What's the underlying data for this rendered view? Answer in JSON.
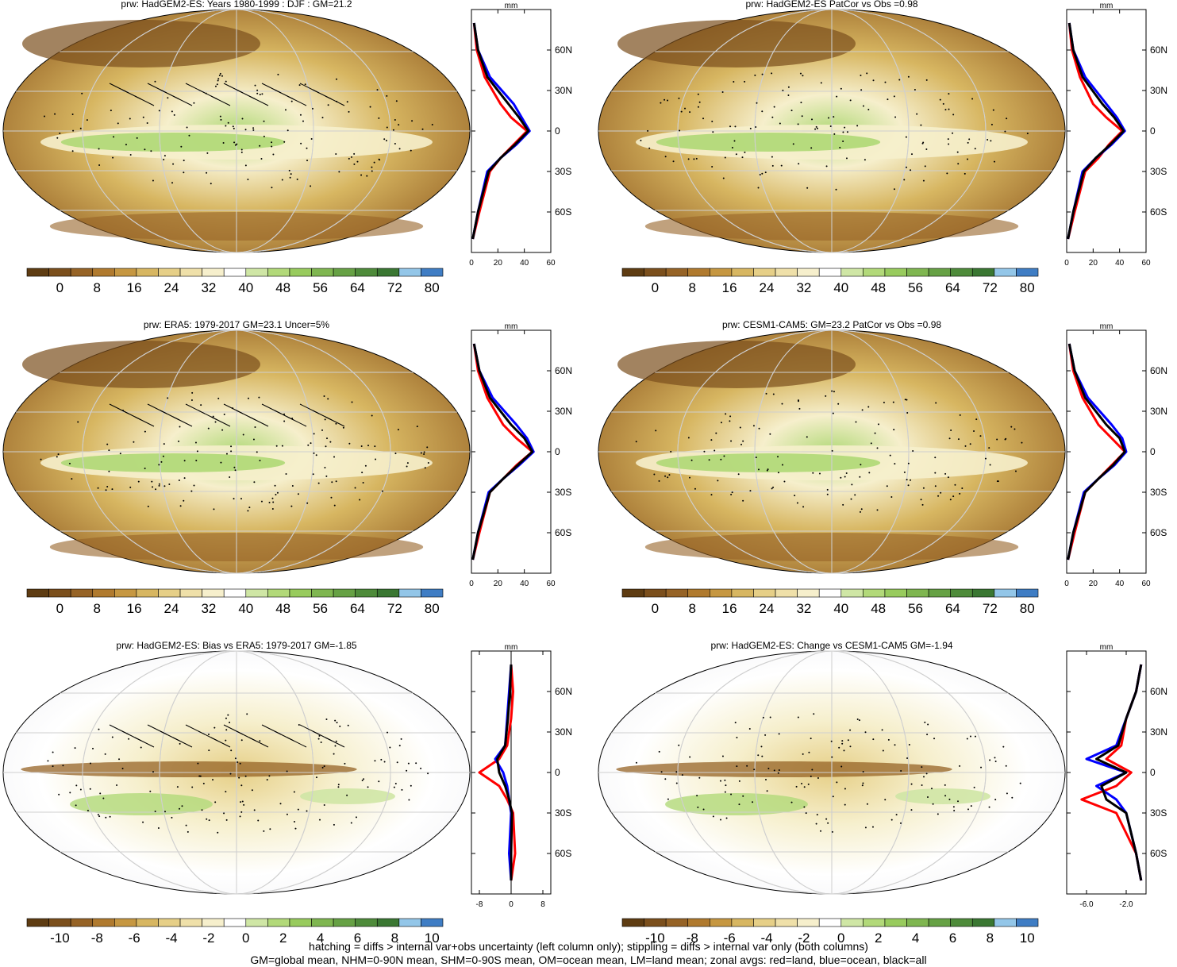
{
  "panels": [
    {
      "title": "prw: HadGEM2-ES: Years 1980-1999 : DJF : GM=21.2",
      "kind": "clim"
    },
    {
      "title": "prw: HadGEM2-ES PatCor vs Obs =0.98",
      "kind": "clim"
    },
    {
      "title": "prw: ERA5: 1979-2017 GM=23.1 Uncer=5%",
      "kind": "clim"
    },
    {
      "title": "prw: CESM1-CAM5: GM=23.2 PatCor vs Obs =0.98",
      "kind": "clim"
    },
    {
      "title": "prw: HadGEM2-ES: Bias vs ERA5: 1979-2017 GM=-1.85",
      "kind": "diff"
    },
    {
      "title": "prw: HadGEM2-ES: Change vs CESM1-CAM5 GM=-1.94",
      "kind": "diff"
    }
  ],
  "colorbars": {
    "clim": {
      "labels": [
        "0",
        "8",
        "16",
        "24",
        "32",
        "40",
        "48",
        "56",
        "64",
        "72",
        "80"
      ],
      "colors": [
        "#5e3c12",
        "#7b4f1c",
        "#966326",
        "#b07a2e",
        "#c69741",
        "#d7b661",
        "#e6cf87",
        "#efe0a9",
        "#f6efcc",
        "#ffffff",
        "#cfe6a5",
        "#b2d979",
        "#98cb5d",
        "#7fb650",
        "#66a144",
        "#4e8b3a",
        "#3a7732",
        "#93c6e8",
        "#3f7dc4"
      ]
    },
    "diff": {
      "labels": [
        "-10",
        "-8",
        "-6",
        "-4",
        "-2",
        "0",
        "2",
        "4",
        "6",
        "8",
        "10"
      ],
      "colors": [
        "#5e3c12",
        "#7b4f1c",
        "#966326",
        "#b07a2e",
        "#c69741",
        "#d7b661",
        "#e6cf87",
        "#efe0a9",
        "#f6efcc",
        "#ffffff",
        "#cfe6a5",
        "#b2d979",
        "#98cb5d",
        "#7fb650",
        "#66a144",
        "#4e8b3a",
        "#3a7732",
        "#93c6e8",
        "#3f7dc4"
      ]
    }
  },
  "lat_labels": [
    "60N",
    "30N",
    "0",
    "30S",
    "60S"
  ],
  "zonal_unit": "mm",
  "zonal_xticks": {
    "clim": [
      "0",
      "20",
      "40",
      "60"
    ],
    "bias": [
      "-8",
      "0",
      "8"
    ],
    "change": [
      "-6.0",
      "-2.0"
    ]
  },
  "chart_data": [
    {
      "type": "line",
      "title": "prw: HadGEM2-ES: Years 1980-1999 : DJF : GM=21.2",
      "xlim": [
        0,
        60
      ],
      "ylim": [
        -90,
        90
      ],
      "series": [
        {
          "color": "red",
          "x": [
            2,
            4,
            10,
            22,
            30,
            42,
            32,
            22,
            14,
            6,
            1
          ],
          "y": [
            80,
            60,
            40,
            20,
            10,
            0,
            -10,
            -20,
            -30,
            -60,
            -80
          ]
        },
        {
          "color": "blue",
          "x": [
            2,
            5,
            14,
            32,
            38,
            44,
            34,
            22,
            12,
            5,
            1
          ],
          "y": [
            80,
            60,
            40,
            20,
            10,
            0,
            -10,
            -20,
            -30,
            -60,
            -80
          ]
        },
        {
          "color": "black",
          "x": [
            2,
            5,
            12,
            28,
            36,
            43,
            33,
            22,
            13,
            5,
            1
          ],
          "y": [
            80,
            60,
            40,
            20,
            10,
            0,
            -10,
            -20,
            -30,
            -60,
            -80
          ]
        }
      ]
    },
    {
      "type": "line",
      "title": "prw: HadGEM2-ES PatCor vs Obs =0.98",
      "xlim": [
        0,
        60
      ],
      "ylim": [
        -90,
        90
      ],
      "series": [
        {
          "color": "red",
          "x": [
            2,
            4,
            10,
            20,
            30,
            42,
            32,
            24,
            14,
            6,
            1
          ],
          "y": [
            80,
            60,
            40,
            20,
            10,
            0,
            -10,
            -20,
            -30,
            -60,
            -80
          ]
        },
        {
          "color": "blue",
          "x": [
            2,
            5,
            14,
            30,
            38,
            44,
            34,
            22,
            12,
            5,
            1
          ],
          "y": [
            80,
            60,
            40,
            20,
            10,
            0,
            -10,
            -20,
            -30,
            -60,
            -80
          ]
        },
        {
          "color": "black",
          "x": [
            2,
            5,
            12,
            27,
            36,
            43,
            33,
            22,
            13,
            5,
            1
          ],
          "y": [
            80,
            60,
            40,
            20,
            10,
            0,
            -10,
            -20,
            -30,
            -60,
            -80
          ]
        }
      ]
    },
    {
      "type": "line",
      "title": "prw: ERA5: 1979-2017 GM=23.1 Uncer=5%",
      "xlim": [
        0,
        60
      ],
      "ylim": [
        -90,
        90
      ],
      "series": [
        {
          "color": "red",
          "x": [
            2,
            5,
            12,
            24,
            34,
            46,
            34,
            24,
            14,
            6,
            1
          ],
          "y": [
            80,
            60,
            40,
            20,
            10,
            0,
            -10,
            -20,
            -30,
            -60,
            -80
          ]
        },
        {
          "color": "blue",
          "x": [
            2,
            6,
            16,
            34,
            42,
            47,
            36,
            24,
            13,
            5,
            1
          ],
          "y": [
            80,
            60,
            40,
            20,
            10,
            0,
            -10,
            -20,
            -30,
            -60,
            -80
          ]
        },
        {
          "color": "black",
          "x": [
            2,
            6,
            14,
            30,
            40,
            46,
            35,
            24,
            14,
            5,
            1
          ],
          "y": [
            80,
            60,
            40,
            20,
            10,
            0,
            -10,
            -20,
            -30,
            -60,
            -80
          ]
        }
      ]
    },
    {
      "type": "line",
      "title": "prw: CESM1-CAM5: GM=23.2 PatCor vs Obs =0.98",
      "xlim": [
        0,
        60
      ],
      "ylim": [
        -90,
        90
      ],
      "series": [
        {
          "color": "red",
          "x": [
            2,
            5,
            12,
            24,
            34,
            44,
            34,
            24,
            14,
            6,
            1
          ],
          "y": [
            80,
            60,
            40,
            20,
            10,
            0,
            -10,
            -20,
            -30,
            -60,
            -80
          ]
        },
        {
          "color": "blue",
          "x": [
            2,
            6,
            16,
            34,
            42,
            45,
            36,
            24,
            13,
            5,
            1
          ],
          "y": [
            80,
            60,
            40,
            20,
            10,
            0,
            -10,
            -20,
            -30,
            -60,
            -80
          ]
        },
        {
          "color": "black",
          "x": [
            2,
            6,
            14,
            30,
            40,
            44,
            35,
            24,
            14,
            5,
            1
          ],
          "y": [
            80,
            60,
            40,
            20,
            10,
            0,
            -10,
            -20,
            -30,
            -60,
            -80
          ]
        }
      ]
    },
    {
      "type": "line",
      "title": "prw: HadGEM2-ES: Bias vs ERA5: 1979-2017 GM=-1.85",
      "xlim": [
        -10,
        10
      ],
      "ylim": [
        -90,
        90
      ],
      "series": [
        {
          "color": "red",
          "x": [
            0,
            0.5,
            0,
            -1,
            -3,
            -8,
            -3,
            -1,
            0.5,
            1,
            0
          ],
          "y": [
            80,
            60,
            40,
            20,
            10,
            0,
            -10,
            -20,
            -30,
            -60,
            -80
          ]
        },
        {
          "color": "blue",
          "x": [
            0,
            -0.5,
            -1,
            -1.5,
            -4,
            -2,
            -1,
            -0.5,
            0,
            -0.5,
            0
          ],
          "y": [
            80,
            60,
            40,
            20,
            10,
            0,
            -10,
            -20,
            -30,
            -60,
            -80
          ]
        },
        {
          "color": "black",
          "x": [
            0,
            -0.3,
            -0.8,
            -1.5,
            -3.5,
            -3,
            -1.5,
            -0.5,
            0.2,
            0,
            0
          ],
          "y": [
            80,
            60,
            40,
            20,
            10,
            0,
            -10,
            -20,
            -30,
            -60,
            -80
          ]
        }
      ]
    },
    {
      "type": "line",
      "title": "prw: HadGEM2-ES: Change vs CESM1-CAM5 GM=-1.94",
      "xlim": [
        -8,
        0
      ],
      "ylim": [
        -90,
        90
      ],
      "series": [
        {
          "color": "red",
          "x": [
            -0.5,
            -1,
            -2,
            -2.5,
            -4,
            -1.5,
            -3,
            -6.5,
            -3,
            -1,
            -0.5
          ],
          "y": [
            80,
            60,
            40,
            20,
            10,
            0,
            -10,
            -20,
            -30,
            -60,
            -80
          ]
        },
        {
          "color": "blue",
          "x": [
            -0.5,
            -1,
            -2,
            -3,
            -6,
            -2,
            -5,
            -3,
            -2,
            -1,
            -0.5
          ],
          "y": [
            80,
            60,
            40,
            20,
            10,
            0,
            -10,
            -20,
            -30,
            -60,
            -80
          ]
        },
        {
          "color": "black",
          "x": [
            -0.5,
            -1,
            -2,
            -2.8,
            -5,
            -2,
            -4.5,
            -4,
            -2,
            -1,
            -0.5
          ],
          "y": [
            80,
            60,
            40,
            20,
            10,
            0,
            -10,
            -20,
            -30,
            -60,
            -80
          ]
        }
      ]
    }
  ],
  "footer": {
    "line1": "hatching = diffs > internal var+obs uncertainty (left column only); stippling = diffs > internal var only (both columns)",
    "line2": "GM=global mean, NHM=0-90N mean, SHM=0-90S mean, OM=ocean mean, LM=land mean; zonal avgs: red=land, blue=ocean, black=all"
  }
}
